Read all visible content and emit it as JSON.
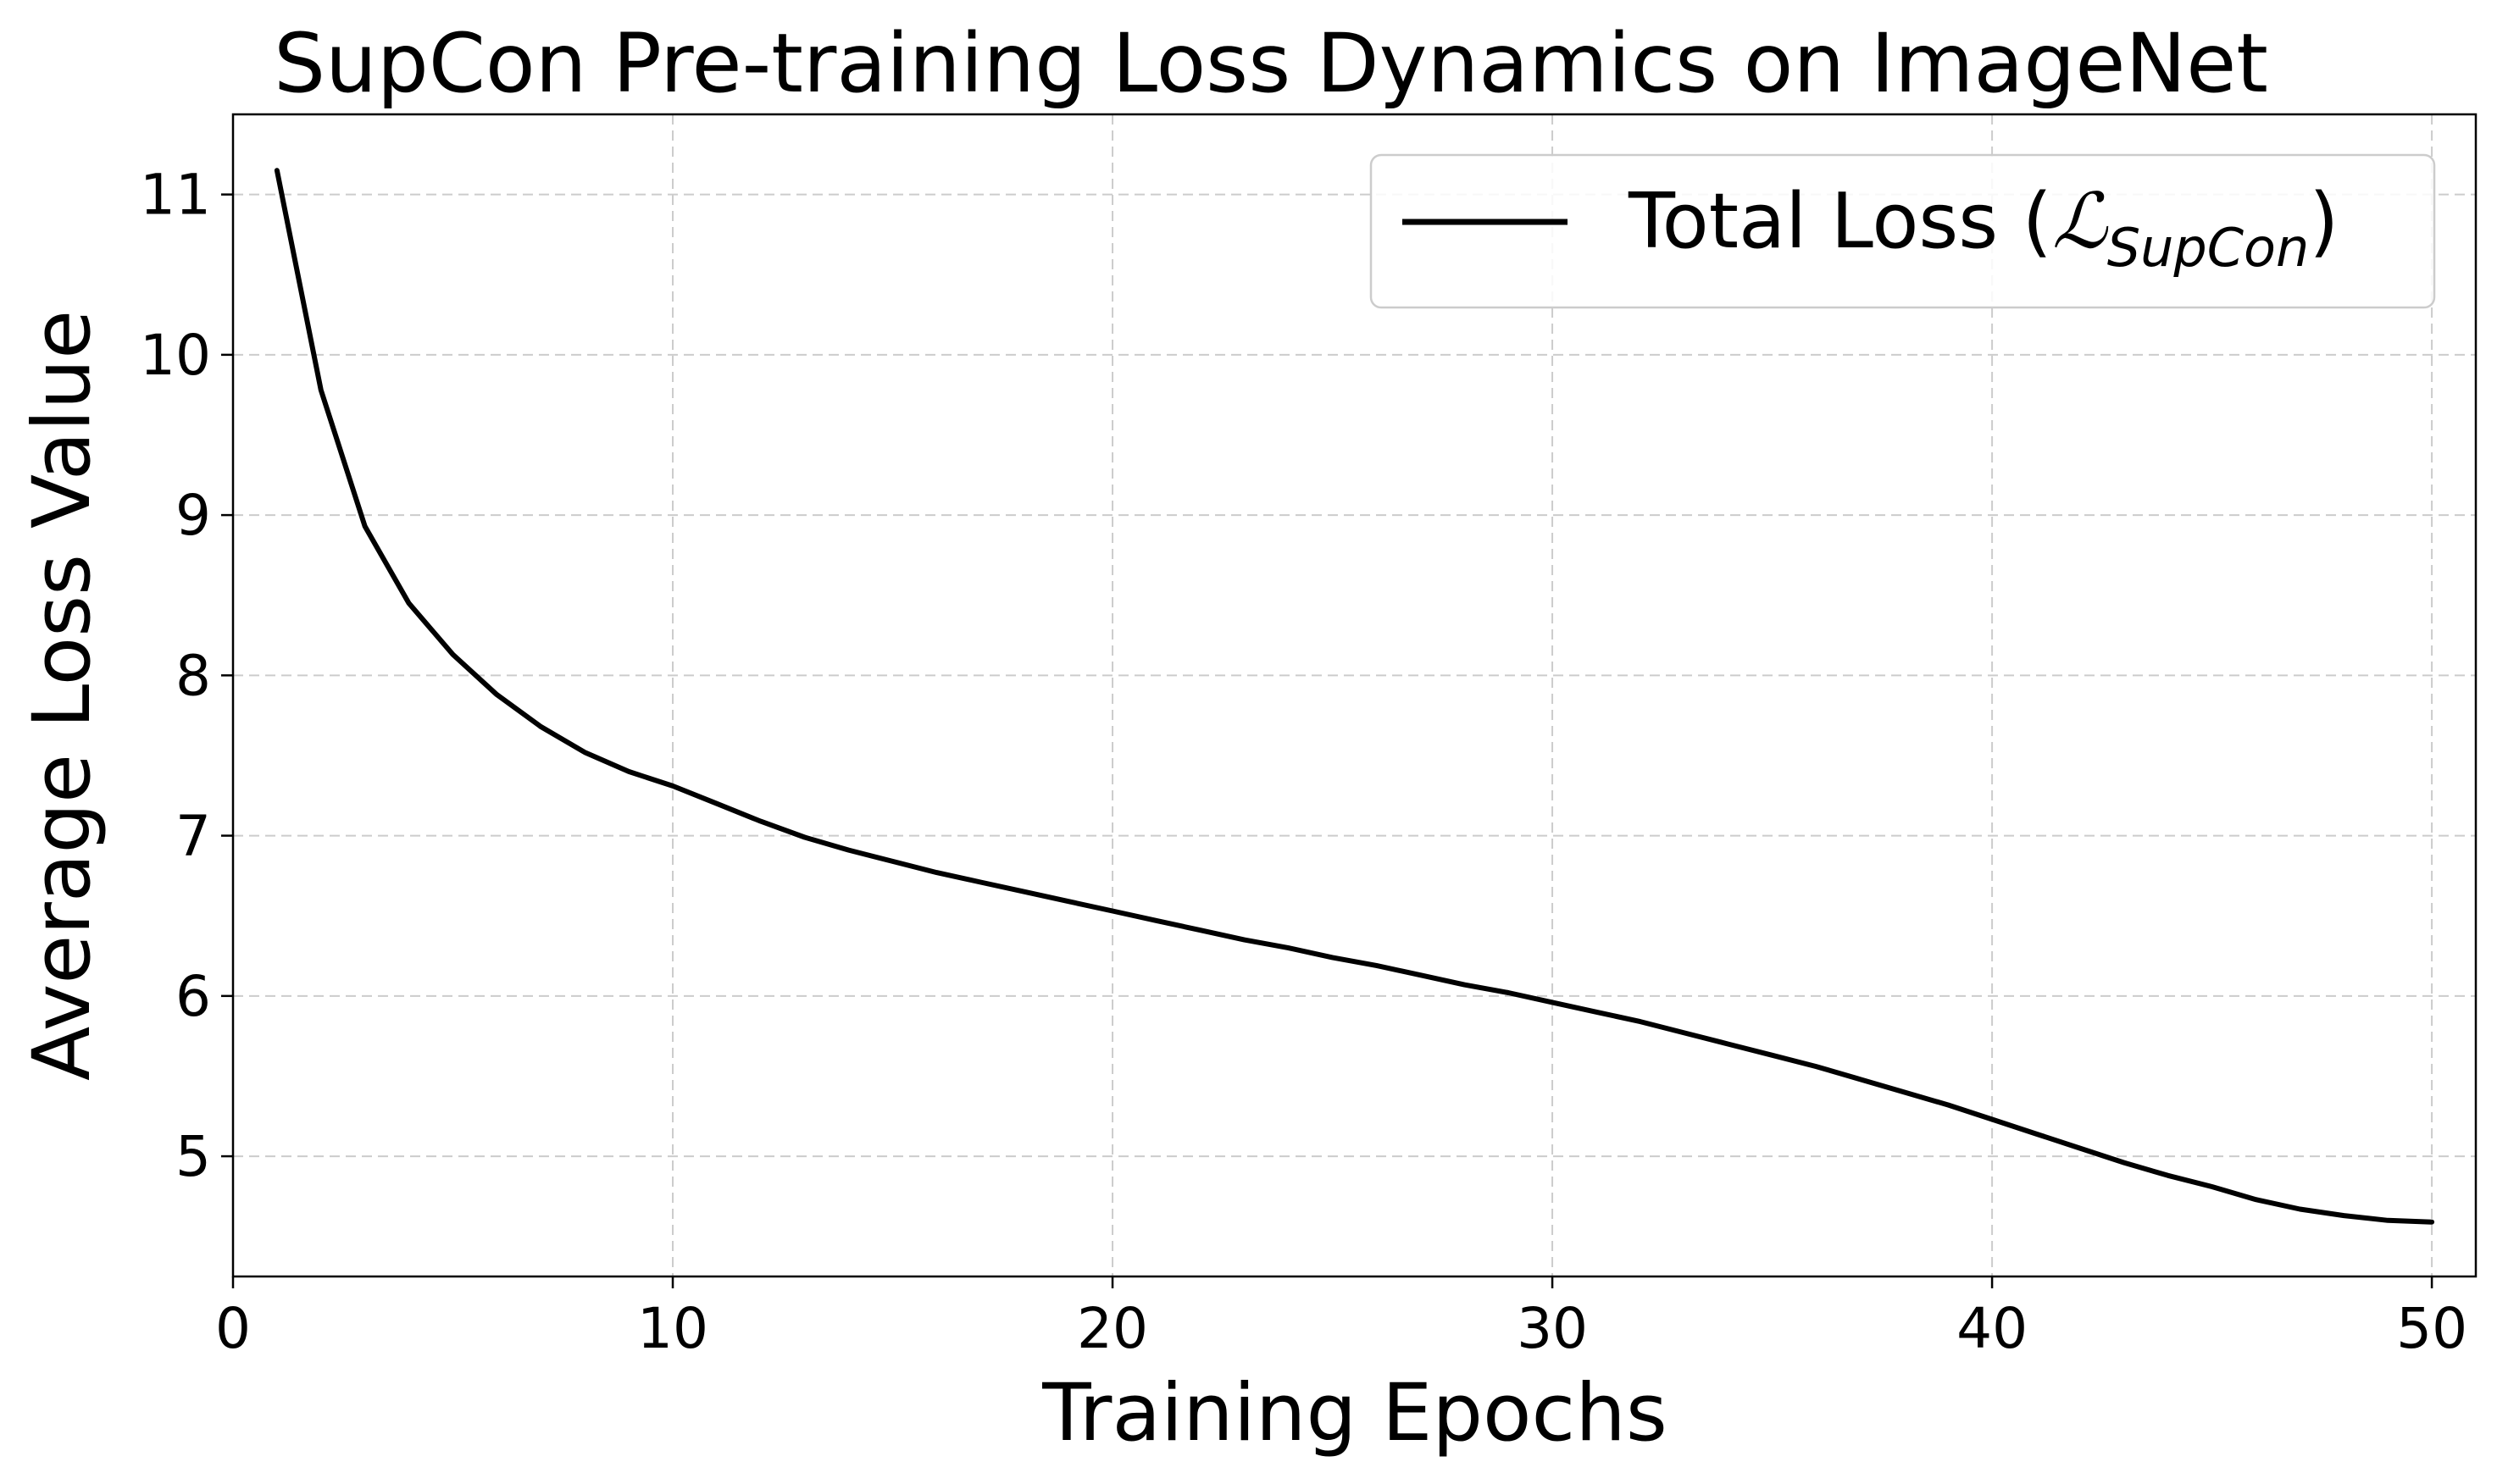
{
  "chart_data": {
    "type": "line",
    "title": "SupCon Pre-training Loss Dynamics on ImageNet",
    "xlabel": "Training Epochs",
    "ylabel": "Average Loss Value",
    "xlim": [
      0,
      51
    ],
    "ylim": [
      4.25,
      11.5
    ],
    "xticks": [
      0,
      10,
      20,
      30,
      40,
      50
    ],
    "yticks": [
      5,
      6,
      7,
      8,
      9,
      10,
      11
    ],
    "grid": true,
    "legend_position": "top-right",
    "series": [
      {
        "name": "Total Loss",
        "legend_label": {
          "prefix": "Total Loss (",
          "math": "ℒ",
          "subscript": "SupCon",
          "suffix": ")"
        },
        "color": "#000000",
        "x": [
          1,
          2,
          3,
          4,
          5,
          6,
          7,
          8,
          9,
          10,
          11,
          12,
          13,
          14,
          15,
          16,
          17,
          18,
          19,
          20,
          21,
          22,
          23,
          24,
          25,
          26,
          27,
          28,
          29,
          30,
          31,
          32,
          33,
          34,
          35,
          36,
          37,
          38,
          39,
          40,
          41,
          42,
          43,
          44,
          45,
          46,
          47,
          48,
          49,
          50
        ],
        "values": [
          11.15,
          9.78,
          8.93,
          8.45,
          8.13,
          7.88,
          7.68,
          7.52,
          7.4,
          7.31,
          7.2,
          7.09,
          6.99,
          6.91,
          6.84,
          6.77,
          6.71,
          6.65,
          6.59,
          6.53,
          6.47,
          6.41,
          6.35,
          6.3,
          6.24,
          6.19,
          6.13,
          6.07,
          6.02,
          5.96,
          5.9,
          5.84,
          5.77,
          5.7,
          5.63,
          5.56,
          5.48,
          5.4,
          5.32,
          5.23,
          5.14,
          5.05,
          4.96,
          4.88,
          4.81,
          4.73,
          4.67,
          4.63,
          4.6,
          4.59
        ]
      }
    ]
  }
}
